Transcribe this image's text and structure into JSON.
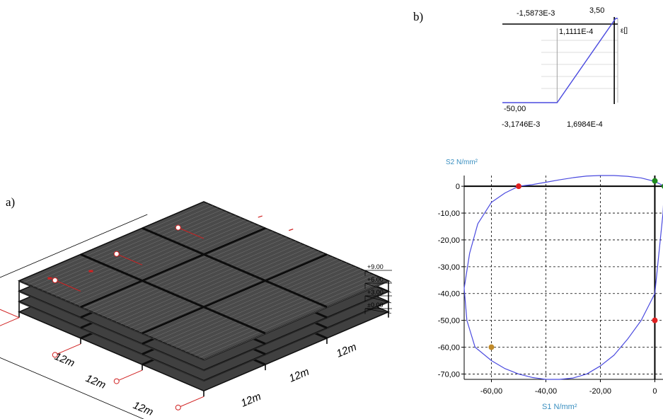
{
  "figure": {
    "panel_a_label": "a)",
    "panel_b_label": "b)"
  },
  "building": {
    "level_labels": [
      "+9.00",
      "+6.00",
      "+3.00",
      "±0.00"
    ],
    "dimension_labels": [
      "12m",
      "12m",
      "12m",
      "12m",
      "12m",
      "12m"
    ],
    "colors": {
      "structure": "#3a3a3a",
      "dimension_line": "#d02020",
      "ink": "#000000"
    }
  },
  "chart_data": [
    {
      "type": "line",
      "x_start_label": "-3,1746E-3",
      "x_end_label": "1,6984E-4",
      "annotations": [
        "-1,5873E-3",
        "3,50",
        "1,1111E-4",
        "-50,00",
        "ε[]"
      ],
      "x": [
        -0.0031746,
        -0.0015873,
        0.00011111,
        0.00016984
      ],
      "y": [
        -50.0,
        -50.0,
        3.5,
        3.5
      ],
      "line_color": "#4a4adf",
      "grid": true
    },
    {
      "type": "line",
      "xlabel": "S1 N/mm²",
      "ylabel": "S2 N/mm²",
      "xticks": [
        "-60,00",
        "-40,00",
        "-20,00",
        "0"
      ],
      "yticks": [
        "0",
        "-10,00",
        "-20,00",
        "-30,00",
        "-40,00",
        "-50,00",
        "-60,00",
        "-70,00"
      ],
      "xlim": [
        -70,
        3
      ],
      "ylim": [
        -72,
        4
      ],
      "grid": true,
      "series": [
        {
          "x": [
            3.5,
            0,
            -5,
            -10,
            -15,
            -20,
            -25,
            -30,
            -35,
            -40,
            -45,
            -50,
            -55,
            -60,
            -65,
            -68,
            -70,
            -69,
            -66,
            -60,
            -55,
            -50,
            -45,
            -40,
            -35,
            -30,
            -25,
            -20,
            -15,
            -10,
            -5,
            0,
            1.5,
            3,
            3.5
          ],
          "y": [
            0,
            1.8,
            3.1,
            3.7,
            4.0,
            4.0,
            3.8,
            3.2,
            2.4,
            1.5,
            0.6,
            0,
            -2.5,
            -6,
            -14,
            -25,
            -38,
            -50,
            -60,
            -65,
            -68,
            -70,
            -71.3,
            -72,
            -72,
            -71.5,
            -70,
            -67,
            -63,
            -57,
            -50,
            -40,
            -25,
            -10,
            0
          ],
          "color": "#4a4adf"
        }
      ],
      "markers": [
        {
          "x": 0,
          "y": 2,
          "color": "#1d8a1d"
        },
        {
          "x": 3.5,
          "y": 0,
          "color": "#1d8a1d"
        },
        {
          "x": -50,
          "y": 0,
          "color": "#e02020"
        },
        {
          "x": 0,
          "y": -50,
          "color": "#e02020"
        },
        {
          "x": -60,
          "y": -60,
          "color": "#c08a2a"
        }
      ]
    }
  ]
}
